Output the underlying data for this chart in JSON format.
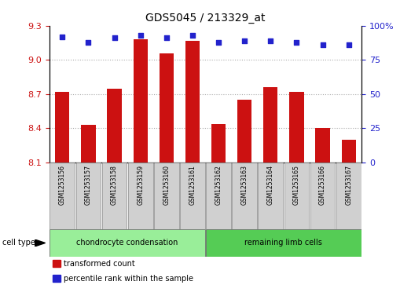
{
  "title": "GDS5045 / 213329_at",
  "samples": [
    "GSM1253156",
    "GSM1253157",
    "GSM1253158",
    "GSM1253159",
    "GSM1253160",
    "GSM1253161",
    "GSM1253162",
    "GSM1253163",
    "GSM1253164",
    "GSM1253165",
    "GSM1253166",
    "GSM1253167"
  ],
  "transformed_count": [
    8.72,
    8.43,
    8.75,
    9.18,
    9.06,
    9.17,
    8.44,
    8.65,
    8.76,
    8.72,
    8.4,
    8.3
  ],
  "percentile_rank": [
    92,
    88,
    91,
    93,
    91,
    93,
    88,
    89,
    89,
    88,
    86,
    86
  ],
  "ylim_left": [
    8.1,
    9.3
  ],
  "yticks_left": [
    8.1,
    8.4,
    8.7,
    9.0,
    9.3
  ],
  "ylim_right": [
    0,
    100
  ],
  "yticks_right": [
    0,
    25,
    50,
    75,
    100
  ],
  "bar_color": "#cc1111",
  "dot_color": "#2222cc",
  "cell_type_groups": [
    {
      "label": "chondrocyte condensation",
      "start": 0,
      "end": 6,
      "color": "#99ee99"
    },
    {
      "label": "remaining limb cells",
      "start": 6,
      "end": 12,
      "color": "#55cc55"
    }
  ],
  "grid_color": "#aaaaaa",
  "background_color": "#ffffff",
  "label_color_left": "#cc1111",
  "label_color_right": "#2222cc",
  "sample_box_color": "#d0d0d0",
  "legend": [
    {
      "label": "transformed count",
      "color": "#cc1111"
    },
    {
      "label": "percentile rank within the sample",
      "color": "#2222cc"
    }
  ]
}
